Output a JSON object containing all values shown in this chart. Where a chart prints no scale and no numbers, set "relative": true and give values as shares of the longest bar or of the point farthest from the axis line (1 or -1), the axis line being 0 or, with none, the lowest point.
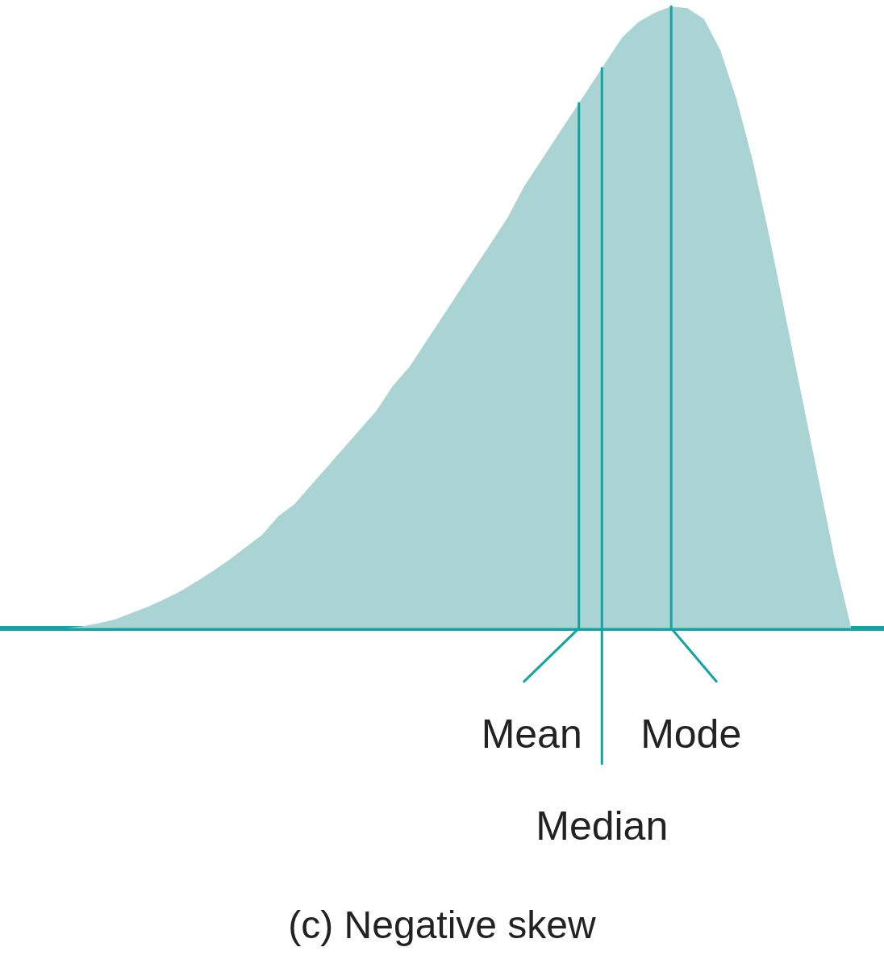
{
  "chart_data": {
    "type": "area",
    "title": "(c) Negative skew",
    "relative": true,
    "categories": [
      null,
      null,
      null,
      null,
      null,
      null,
      null,
      null,
      null,
      null,
      null,
      null,
      null,
      null,
      null,
      null,
      null,
      null,
      null,
      null,
      null,
      null,
      null,
      null,
      null,
      null,
      null,
      null,
      null,
      null,
      null,
      null,
      null,
      null,
      null,
      null,
      null,
      null,
      null,
      null,
      null,
      null,
      null,
      null,
      null,
      null,
      null,
      null,
      null,
      null,
      null,
      null,
      null,
      null,
      null
    ],
    "series": [
      {
        "color": "#a9d4d3",
        "values": [
          null,
          null,
          null,
          null,
          0,
          0.003,
          0.008,
          0.014,
          0.024,
          0.034,
          0.046,
          0.059,
          0.075,
          0.092,
          0.11,
          0.13,
          0.15,
          0.18,
          0.2,
          0.23,
          0.26,
          0.29,
          0.32,
          0.35,
          0.39,
          0.42,
          0.46,
          0.5,
          0.54,
          0.58,
          0.62,
          0.66,
          0.71,
          0.75,
          0.79,
          0.83,
          0.87,
          0.91,
          0.95,
          0.975,
          0.99,
          1,
          0.997,
          0.98,
          0.93,
          0.85,
          0.75,
          0.63,
          0.5,
          0.37,
          0.24,
          0.11,
          0,
          null,
          null
        ]
      }
    ],
    "annotations": [
      "Mean",
      "Median",
      "Mode"
    ]
  }
}
